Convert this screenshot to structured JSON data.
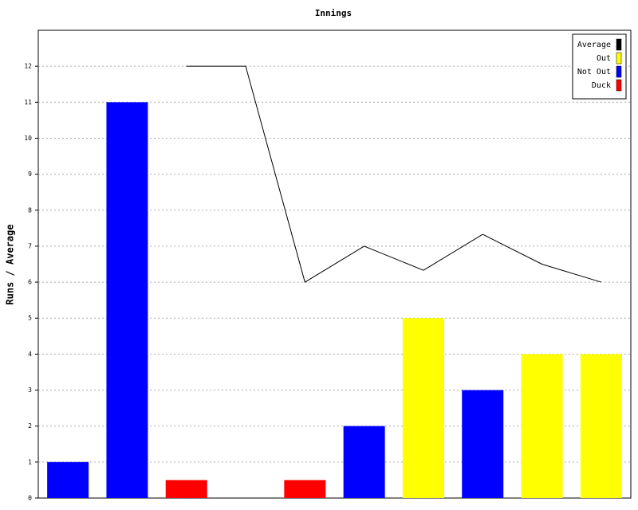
{
  "chart_data": {
    "type": "bar",
    "title": "Innings",
    "y_label": "Runs / Average",
    "categories": [
      null,
      null,
      null,
      null,
      null,
      null,
      null,
      null,
      null,
      null
    ],
    "series": [
      {
        "name": "Average",
        "type": "line",
        "color": "#000000",
        "values": [
          null,
          null,
          12,
          12,
          6,
          7,
          6.33,
          7.33,
          6.5,
          6
        ]
      },
      {
        "name": "Out",
        "type": "bar",
        "color": "#ffff00",
        "values": [
          null,
          null,
          null,
          null,
          null,
          null,
          5,
          null,
          4,
          4
        ]
      },
      {
        "name": "Not Out",
        "type": "bar",
        "color": "#0000ff",
        "values": [
          1,
          11,
          null,
          null,
          null,
          2,
          null,
          3,
          null,
          null
        ]
      },
      {
        "name": "Duck",
        "type": "bar",
        "color": "#ff0000",
        "values": [
          null,
          null,
          0.5,
          null,
          0.5,
          null,
          null,
          null,
          null,
          null
        ]
      }
    ],
    "ylim": [
      0,
      13
    ],
    "yticks": [
      0,
      1,
      2,
      3,
      4,
      5,
      6,
      7,
      8,
      9,
      10,
      11,
      12
    ],
    "grid": true,
    "legend": "top-right"
  }
}
